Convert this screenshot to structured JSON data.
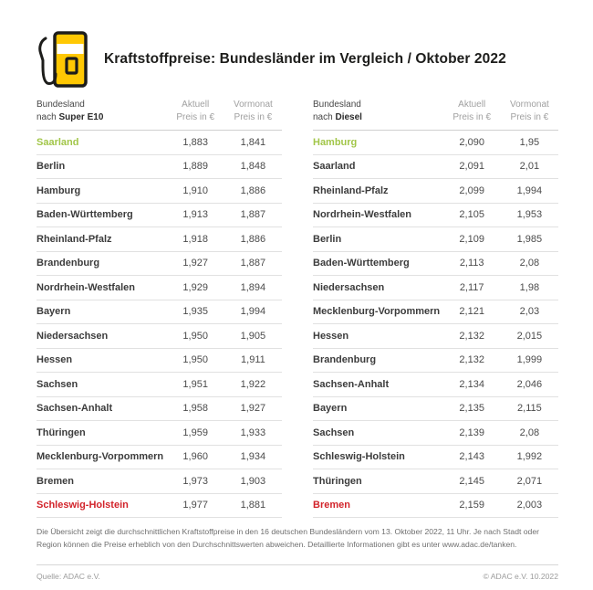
{
  "header": {
    "title": "Kraftstoffpreise: Bundesländer im Vergleich / Oktober 2022"
  },
  "colors": {
    "brand_yellow": "#FFC803",
    "best_green": "#A2C649",
    "worst_red": "#D2232A",
    "text_dark": "#1D1D1B"
  },
  "chart_data": [
    {
      "type": "table",
      "name": "super-e10",
      "header": {
        "state_line1": "Bundesland",
        "state_prefix": "nach ",
        "fuel": "Super E10",
        "current_line1": "Aktuell",
        "current_line2": "Preis in €",
        "previous_line1": "Vormonat",
        "previous_line2": "Preis in €"
      },
      "rows": [
        {
          "state": "Saarland",
          "current": "1,883",
          "previous": "1,841",
          "highlight": "best"
        },
        {
          "state": "Berlin",
          "current": "1,889",
          "previous": "1,848"
        },
        {
          "state": "Hamburg",
          "current": "1,910",
          "previous": "1,886"
        },
        {
          "state": "Baden-Württemberg",
          "current": "1,913",
          "previous": "1,887"
        },
        {
          "state": "Rheinland-Pfalz",
          "current": "1,918",
          "previous": "1,886"
        },
        {
          "state": "Brandenburg",
          "current": "1,927",
          "previous": "1,887"
        },
        {
          "state": "Nordrhein-Westfalen",
          "current": "1,929",
          "previous": "1,894"
        },
        {
          "state": "Bayern",
          "current": "1,935",
          "previous": "1,994"
        },
        {
          "state": "Niedersachsen",
          "current": "1,950",
          "previous": "1,905"
        },
        {
          "state": "Hessen",
          "current": "1,950",
          "previous": "1,911"
        },
        {
          "state": "Sachsen",
          "current": "1,951",
          "previous": "1,922"
        },
        {
          "state": "Sachsen-Anhalt",
          "current": "1,958",
          "previous": "1,927"
        },
        {
          "state": "Thüringen",
          "current": "1,959",
          "previous": "1,933"
        },
        {
          "state": "Mecklenburg-Vorpommern",
          "current": "1,960",
          "previous": "1,934"
        },
        {
          "state": "Bremen",
          "current": "1,973",
          "previous": "1,903"
        },
        {
          "state": "Schleswig-Holstein",
          "current": "1,977",
          "previous": "1,881",
          "highlight": "worst"
        }
      ]
    },
    {
      "type": "table",
      "name": "diesel",
      "header": {
        "state_line1": "Bundesland",
        "state_prefix": "nach ",
        "fuel": "Diesel",
        "current_line1": "Aktuell",
        "current_line2": "Preis in €",
        "previous_line1": "Vormonat",
        "previous_line2": "Preis in €"
      },
      "rows": [
        {
          "state": "Hamburg",
          "current": "2,090",
          "previous": "1,95",
          "highlight": "best"
        },
        {
          "state": "Saarland",
          "current": "2,091",
          "previous": "2,01"
        },
        {
          "state": "Rheinland-Pfalz",
          "current": "2,099",
          "previous": "1,994"
        },
        {
          "state": "Nordrhein-Westfalen",
          "current": "2,105",
          "previous": "1,953"
        },
        {
          "state": "Berlin",
          "current": "2,109",
          "previous": "1,985"
        },
        {
          "state": "Baden-Württemberg",
          "current": "2,113",
          "previous": "2,08"
        },
        {
          "state": "Niedersachsen",
          "current": "2,117",
          "previous": "1,98"
        },
        {
          "state": "Mecklenburg-Vorpommern",
          "current": "2,121",
          "previous": "2,03"
        },
        {
          "state": "Hessen",
          "current": "2,132",
          "previous": "2,015"
        },
        {
          "state": "Brandenburg",
          "current": "2,132",
          "previous": "1,999"
        },
        {
          "state": "Sachsen-Anhalt",
          "current": "2,134",
          "previous": "2,046"
        },
        {
          "state": "Bayern",
          "current": "2,135",
          "previous": "2,115"
        },
        {
          "state": "Sachsen",
          "current": "2,139",
          "previous": "2,08"
        },
        {
          "state": "Schleswig-Holstein",
          "current": "2,143",
          "previous": "1,992"
        },
        {
          "state": "Thüringen",
          "current": "2,145",
          "previous": "2,071"
        },
        {
          "state": "Bremen",
          "current": "2,159",
          "previous": "2,003",
          "highlight": "worst"
        }
      ]
    }
  ],
  "footnote": {
    "text": "Die Übersicht zeigt die durchschnittlichen Kraftstoffpreise in den 16 deutschen Bundesländern vom 13. Oktober 2022, 11 Uhr. Je nach Stadt oder Region können die Preise erheblich von den Durchschnittswerten abweichen. Detaillierte Informationen gibt es unter www.adac.de/tanken."
  },
  "footer": {
    "source": "Quelle: ADAC e.V.",
    "copyright": "© ADAC e.V. 10.2022"
  }
}
